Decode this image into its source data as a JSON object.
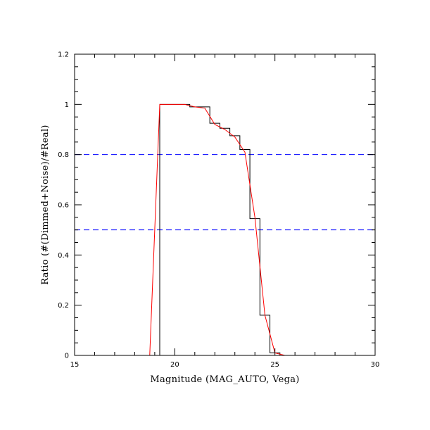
{
  "chart_data": {
    "type": "line",
    "title": "",
    "xlabel": "Magnitude (MAG_AUTO, Vega)",
    "ylabel": "Ratio (#(Dimmed+Noise)/#Real)",
    "xlim": [
      15,
      30
    ],
    "ylim": [
      0,
      1.2
    ],
    "x_ticks": [
      "15",
      "20",
      "25",
      "30"
    ],
    "y_ticks": [
      "0",
      "0.2",
      "0.4",
      "0.6",
      "0.8",
      "1",
      "1.2"
    ],
    "grid": false,
    "legend": "none",
    "reference_lines": [
      {
        "y": 0.8,
        "style": "dashed",
        "color": "#0000ff"
      },
      {
        "y": 0.5,
        "style": "dashed",
        "color": "#0000ff"
      }
    ],
    "series": [
      {
        "style": "step-histogram",
        "color": "#000000",
        "bin_edges": [
          18.75,
          19.25,
          19.75,
          20.25,
          20.75,
          21.25,
          21.75,
          22.25,
          22.75,
          23.25,
          23.75,
          24.25,
          24.75,
          25.25,
          30.0
        ],
        "values": [
          0.0,
          1.0,
          1.0,
          1.0,
          0.99,
          0.99,
          0.925,
          0.905,
          0.875,
          0.82,
          0.545,
          0.16,
          0.01,
          0.0
        ]
      },
      {
        "style": "line",
        "color": "#ff0000",
        "x": [
          18.75,
          19.25,
          19.5,
          20.0,
          20.5,
          21.0,
          21.5,
          22.0,
          22.5,
          23.0,
          23.5,
          24.0,
          24.5,
          25.0,
          25.5,
          30.0
        ],
        "y": [
          0.0,
          1.0,
          1.0,
          1.0,
          1.0,
          0.99,
          0.985,
          0.92,
          0.9,
          0.87,
          0.81,
          0.55,
          0.16,
          0.01,
          0.0,
          0.0
        ]
      }
    ]
  }
}
